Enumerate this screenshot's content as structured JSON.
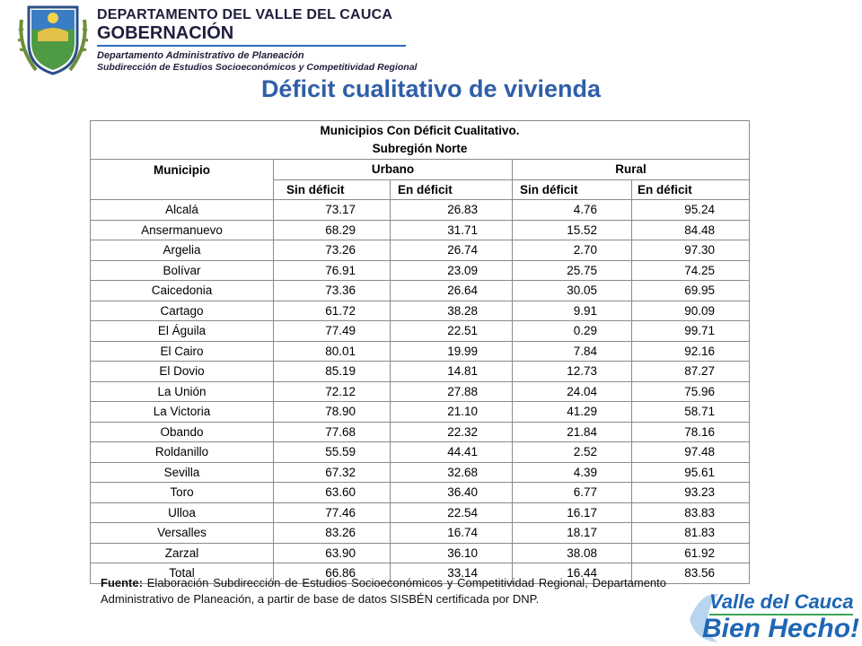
{
  "header": {
    "department": "DEPARTAMENTO DEL VALLE DEL CAUCA",
    "government": "GOBERNACIÓN",
    "office": "Departamento  Administrativo de Planeación",
    "suboffice": "Subdirección de Estudios Socioeconómicos y Competitividad Regional"
  },
  "title": "Déficit cualitativo de vivienda",
  "table": {
    "caption_line1": "Municipios Con Déficit Cualitativo.",
    "caption_line2": "Subregión Norte",
    "col_municipio": "Municipio",
    "col_urbano": "Urbano",
    "col_rural": "Rural",
    "sub_sin": "Sin déficit",
    "sub_en": "En déficit",
    "rows": [
      [
        "Alcalá",
        "73.17",
        "26.83",
        "4.76",
        "95.24"
      ],
      [
        "Ansermanuevo",
        "68.29",
        "31.71",
        "15.52",
        "84.48"
      ],
      [
        "Argelia",
        "73.26",
        "26.74",
        "2.70",
        "97.30"
      ],
      [
        "Bolívar",
        "76.91",
        "23.09",
        "25.75",
        "74.25"
      ],
      [
        "Caicedonia",
        "73.36",
        "26.64",
        "30.05",
        "69.95"
      ],
      [
        "Cartago",
        "61.72",
        "38.28",
        "9.91",
        "90.09"
      ],
      [
        "El Águila",
        "77.49",
        "22.51",
        "0.29",
        "99.71"
      ],
      [
        "El Cairo",
        "80.01",
        "19.99",
        "7.84",
        "92.16"
      ],
      [
        "El Dovio",
        "85.19",
        "14.81",
        "12.73",
        "87.27"
      ],
      [
        "La Unión",
        "72.12",
        "27.88",
        "24.04",
        "75.96"
      ],
      [
        "La Victoria",
        "78.90",
        "21.10",
        "41.29",
        "58.71"
      ],
      [
        "Obando",
        "77.68",
        "22.32",
        "21.84",
        "78.16"
      ],
      [
        "Roldanillo",
        "55.59",
        "44.41",
        "2.52",
        "97.48"
      ],
      [
        "Sevilla",
        "67.32",
        "32.68",
        "4.39",
        "95.61"
      ],
      [
        "Toro",
        "63.60",
        "36.40",
        "6.77",
        "93.23"
      ],
      [
        "Ulloa",
        "77.46",
        "22.54",
        "16.17",
        "83.83"
      ],
      [
        "Versalles",
        "83.26",
        "16.74",
        "18.17",
        "81.83"
      ],
      [
        "Zarzal",
        "63.90",
        "36.10",
        "38.08",
        "61.92"
      ],
      [
        "Total",
        "66.86",
        "33.14",
        "16.44",
        "83.56"
      ]
    ]
  },
  "source": {
    "label": "Fuente:",
    "text": " Elaboración Subdirección de Estudios Socioeconómicos y Competitividad Regional, Departamento Administrativo de Planeación,  a partir de base de datos SISBÉN certificada por DNP."
  },
  "brand": {
    "line1": "Valle del Cauca",
    "line2": "Bien Hecho!"
  },
  "colors": {
    "title": "#2f5ea8",
    "brand_blue": "#1f66b5",
    "brand_green": "#3aa655"
  },
  "icons": {
    "seal": "department-seal-icon"
  }
}
